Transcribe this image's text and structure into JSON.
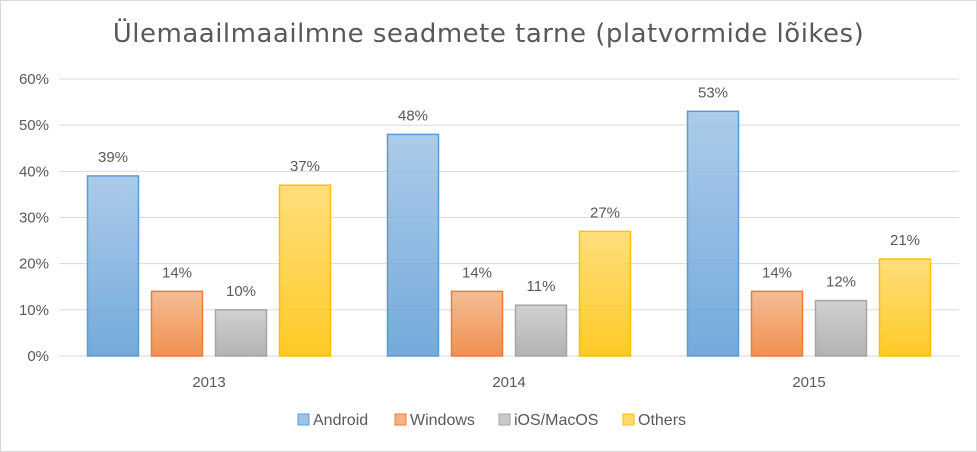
{
  "chart_data": {
    "type": "bar",
    "title": "Ülemaailmaailmne seadmete tarne (platvormide lõikes)",
    "categories": [
      "2013",
      "2014",
      "2015"
    ],
    "series": [
      {
        "name": "Android",
        "values": [
          39,
          48,
          53
        ],
        "labels": [
          "39%",
          "48%",
          "53%"
        ],
        "color": "#9dc3e6",
        "stroke": "#5b9bd5"
      },
      {
        "name": "Windows",
        "values": [
          14,
          14,
          14
        ],
        "labels": [
          "14%",
          "14%",
          "14%"
        ],
        "color": "#f4b183",
        "stroke": "#ed7d31"
      },
      {
        "name": "iOS/MacOS",
        "values": [
          10,
          11,
          12
        ],
        "labels": [
          "10%",
          "11%",
          "12%"
        ],
        "color": "#c9c9c9",
        "stroke": "#a5a5a5"
      },
      {
        "name": "Others",
        "values": [
          37,
          27,
          21
        ],
        "labels": [
          "37%",
          "27%",
          "21%"
        ],
        "color": "#ffd966",
        "stroke": "#ffc000"
      }
    ],
    "yticks": [
      "0%",
      "10%",
      "20%",
      "30%",
      "40%",
      "50%",
      "60%"
    ],
    "ylim": [
      0,
      60
    ],
    "grid": true,
    "legend": "bottom"
  }
}
